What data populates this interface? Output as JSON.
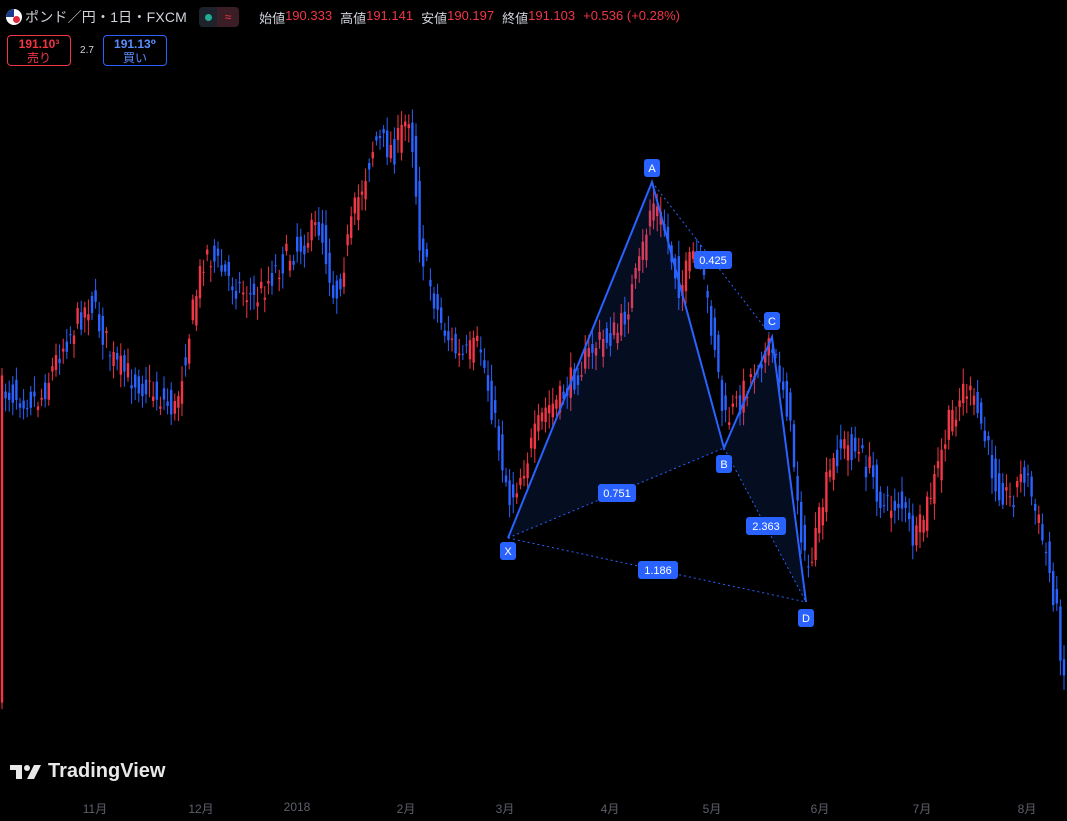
{
  "header": {
    "symbol": "ポンド／円・1日・FXCM",
    "open_label": "始値",
    "open_value": "190.333",
    "high_label": "高値",
    "high_value": "191.141",
    "low_label": "安値",
    "low_value": "190.197",
    "close_label": "終値",
    "close_value": "191.103",
    "change": "+0.536 (+0.28%)",
    "status_wave": "≈"
  },
  "trade": {
    "sell_price": "191.10³",
    "sell_label": "売り",
    "spread": "2.7",
    "buy_price": "191.13⁰",
    "buy_label": "買い"
  },
  "pattern": {
    "points": [
      "X",
      "A",
      "B",
      "C",
      "D"
    ],
    "ratios": {
      "xb": "0.751",
      "ac": "0.425",
      "bd": "2.363",
      "xd": "1.186"
    }
  },
  "x_axis_labels": [
    "11月",
    "12月",
    "2018",
    "2月",
    "3月",
    "4月",
    "5月",
    "6月",
    "7月",
    "8月"
  ],
  "branding": {
    "logo_text": "TradingView"
  },
  "colors": {
    "up": "#f23645",
    "down": "#2962ff",
    "pattern": "#2962ff",
    "background": "#000000"
  }
}
